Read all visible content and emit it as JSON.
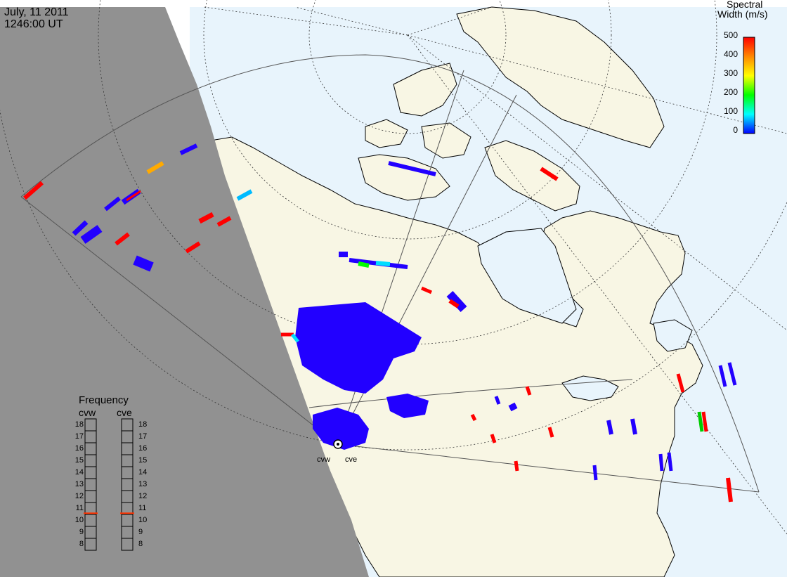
{
  "header": {
    "date": "July, 11 2011",
    "time": "1246:00 UT"
  },
  "colorbar": {
    "title_line1": "Spectral",
    "title_line2": "Width (m/s)",
    "ticks": [
      "500",
      "400",
      "300",
      "200",
      "100",
      "0"
    ],
    "colors": [
      "#ff0000",
      "#ff8800",
      "#ffff00",
      "#00ff00",
      "#00ffff",
      "#0000ff"
    ]
  },
  "frequency_panel": {
    "title": "Frequency",
    "radars": [
      "cvw",
      "cve"
    ],
    "scale": [
      "18",
      "17",
      "16",
      "15",
      "14",
      "13",
      "12",
      "11",
      "10",
      "9",
      "8"
    ],
    "current_mhz": {
      "cvw": 10.6,
      "cve": 10.6
    },
    "marker_color": "#ff3300"
  },
  "map": {
    "stations": [
      "cvw",
      "cve"
    ],
    "ocean_color": "#e8f4fc",
    "land_color": "#f8f6e4",
    "night_color": "#919191",
    "scatter_color": "#2200ff"
  }
}
